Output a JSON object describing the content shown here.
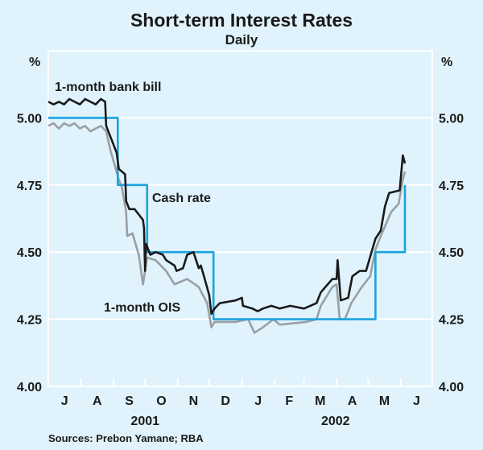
{
  "chart_data": {
    "type": "line",
    "title": "Short-term Interest Rates",
    "subtitle": "Daily",
    "ylabel_left": "%",
    "ylabel_right": "%",
    "ylim": [
      4.0,
      5.25
    ],
    "yticks": [
      "4.00",
      "4.25",
      "4.50",
      "4.75",
      "5.00"
    ],
    "x_units": "days since 1 July 2001",
    "xlim": [
      0,
      365
    ],
    "month_boundaries": [
      0,
      31,
      62,
      92,
      123,
      153,
      184,
      215,
      243,
      274,
      304,
      335,
      365
    ],
    "month_labels": [
      "J",
      "A",
      "S",
      "O",
      "N",
      "D",
      "J",
      "F",
      "M",
      "A",
      "M",
      "J"
    ],
    "year_labels": [
      {
        "label": "2001",
        "center_day": 92
      },
      {
        "label": "2002",
        "center_day": 273
      }
    ],
    "grid": true,
    "source": "Sources: Prebon Yamane; RBA",
    "series": [
      {
        "name": "1-month bank bill",
        "color": "#1a1a1a",
        "points": [
          [
            0,
            5.06
          ],
          [
            5,
            5.05
          ],
          [
            10,
            5.06
          ],
          [
            15,
            5.05
          ],
          [
            20,
            5.07
          ],
          [
            25,
            5.06
          ],
          [
            30,
            5.05
          ],
          [
            35,
            5.07
          ],
          [
            40,
            5.06
          ],
          [
            45,
            5.05
          ],
          [
            50,
            5.07
          ],
          [
            54,
            5.06
          ],
          [
            55,
            4.97
          ],
          [
            61,
            4.91
          ],
          [
            65,
            4.87
          ],
          [
            67,
            4.81
          ],
          [
            73,
            4.79
          ],
          [
            74,
            4.69
          ],
          [
            77,
            4.66
          ],
          [
            82,
            4.66
          ],
          [
            90,
            4.62
          ],
          [
            91,
            4.59
          ],
          [
            92,
            4.43
          ],
          [
            93,
            4.53
          ],
          [
            97,
            4.49
          ],
          [
            102,
            4.5
          ],
          [
            109,
            4.49
          ],
          [
            112,
            4.47
          ],
          [
            120,
            4.45
          ],
          [
            122,
            4.43
          ],
          [
            128,
            4.44
          ],
          [
            132,
            4.49
          ],
          [
            138,
            4.5
          ],
          [
            143,
            4.44
          ],
          [
            145,
            4.45
          ],
          [
            148,
            4.41
          ],
          [
            153,
            4.34
          ],
          [
            155,
            4.27
          ],
          [
            158,
            4.29
          ],
          [
            163,
            4.31
          ],
          [
            178,
            4.32
          ],
          [
            184,
            4.33
          ],
          [
            185,
            4.3
          ],
          [
            194,
            4.29
          ],
          [
            199,
            4.28
          ],
          [
            204,
            4.29
          ],
          [
            212,
            4.3
          ],
          [
            220,
            4.29
          ],
          [
            230,
            4.3
          ],
          [
            243,
            4.29
          ],
          [
            255,
            4.31
          ],
          [
            259,
            4.35
          ],
          [
            270,
            4.4
          ],
          [
            274,
            4.4
          ],
          [
            275,
            4.47
          ],
          [
            278,
            4.32
          ],
          [
            285,
            4.33
          ],
          [
            289,
            4.41
          ],
          [
            296,
            4.43
          ],
          [
            302,
            4.43
          ],
          [
            305,
            4.47
          ],
          [
            311,
            4.55
          ],
          [
            316,
            4.58
          ],
          [
            320,
            4.67
          ],
          [
            324,
            4.72
          ],
          [
            334,
            4.73
          ],
          [
            337,
            4.86
          ],
          [
            339,
            4.83
          ]
        ]
      },
      {
        "name": "1-month OIS",
        "color": "#9a9fa3",
        "points": [
          [
            0,
            4.97
          ],
          [
            5,
            4.98
          ],
          [
            10,
            4.96
          ],
          [
            15,
            4.98
          ],
          [
            20,
            4.97
          ],
          [
            25,
            4.98
          ],
          [
            30,
            4.96
          ],
          [
            35,
            4.97
          ],
          [
            40,
            4.95
          ],
          [
            45,
            4.96
          ],
          [
            50,
            4.97
          ],
          [
            55,
            4.95
          ],
          [
            59,
            4.88
          ],
          [
            67,
            4.77
          ],
          [
            70,
            4.74
          ],
          [
            74,
            4.65
          ],
          [
            75,
            4.56
          ],
          [
            80,
            4.57
          ],
          [
            86,
            4.49
          ],
          [
            90,
            4.38
          ],
          [
            94,
            4.48
          ],
          [
            102,
            4.47
          ],
          [
            112,
            4.43
          ],
          [
            120,
            4.38
          ],
          [
            132,
            4.4
          ],
          [
            143,
            4.37
          ],
          [
            151,
            4.31
          ],
          [
            155,
            4.22
          ],
          [
            158,
            4.24
          ],
          [
            178,
            4.24
          ],
          [
            190,
            4.25
          ],
          [
            196,
            4.2
          ],
          [
            204,
            4.22
          ],
          [
            214,
            4.25
          ],
          [
            220,
            4.23
          ],
          [
            245,
            4.24
          ],
          [
            255,
            4.25
          ],
          [
            259,
            4.3
          ],
          [
            270,
            4.37
          ],
          [
            274,
            4.38
          ],
          [
            277,
            4.25
          ],
          [
            282,
            4.25
          ],
          [
            288,
            4.31
          ],
          [
            298,
            4.37
          ],
          [
            306,
            4.41
          ],
          [
            311,
            4.51
          ],
          [
            316,
            4.56
          ],
          [
            326,
            4.65
          ],
          [
            333,
            4.68
          ],
          [
            337,
            4.77
          ],
          [
            339,
            4.8
          ]
        ]
      },
      {
        "name": "Cash rate",
        "color": "#1aa3e0",
        "points": [
          [
            0,
            5.0
          ],
          [
            66,
            5.0
          ],
          [
            66,
            4.75
          ],
          [
            94,
            4.75
          ],
          [
            94,
            4.5
          ],
          [
            157,
            4.5
          ],
          [
            157,
            4.25
          ],
          [
            311,
            4.25
          ],
          [
            311,
            4.5
          ],
          [
            339,
            4.5
          ],
          [
            339,
            4.75
          ]
        ]
      }
    ],
    "annotations": [
      "1-month bank bill",
      "Cash rate",
      "1-month OIS"
    ]
  }
}
